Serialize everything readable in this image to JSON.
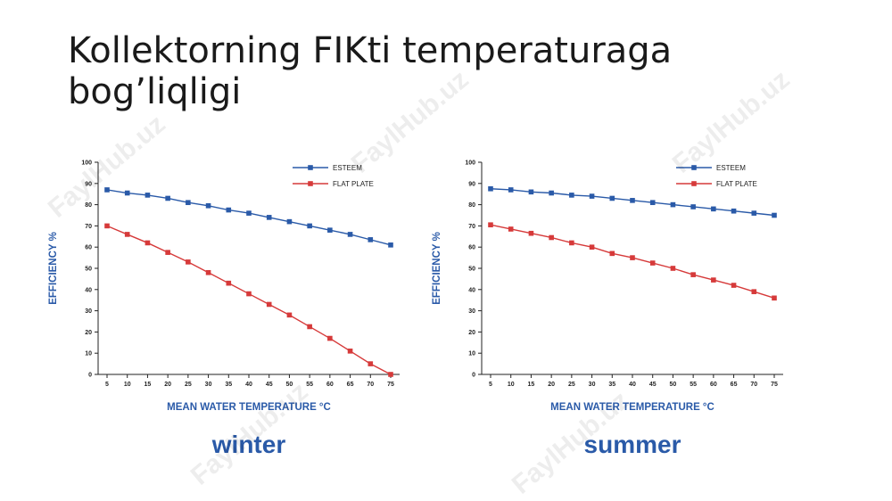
{
  "slide": {
    "title": "Kollektorning FIKti temperaturaga bog’liqligi",
    "watermark": "FaylHub.uz"
  },
  "colors": {
    "esteem": "#2a5aa8",
    "flat_plate": "#d63a3a",
    "label": "#2a5aa8"
  },
  "chart_data": [
    {
      "type": "line",
      "caption": "winter",
      "xlabel": "MEAN WATER TEMPERATURE °C",
      "ylabel": "EFFICIENCY %",
      "x": [
        5,
        10,
        15,
        20,
        25,
        30,
        35,
        40,
        45,
        50,
        55,
        60,
        65,
        70,
        75
      ],
      "ylim": [
        0,
        100
      ],
      "yticks": [
        0,
        10,
        20,
        30,
        40,
        50,
        60,
        70,
        80,
        90,
        100
      ],
      "grid": false,
      "legend": "top-right",
      "series": [
        {
          "name": "ESTEEM",
          "values": [
            87,
            85.5,
            84.5,
            83,
            81,
            79.5,
            77.5,
            76,
            74,
            72,
            70,
            68,
            66,
            63.5,
            61
          ]
        },
        {
          "name": "FLAT PLATE",
          "values": [
            70,
            66,
            62,
            57.5,
            53,
            48,
            43,
            38,
            33,
            28,
            22.5,
            17,
            11,
            5,
            0
          ]
        }
      ]
    },
    {
      "type": "line",
      "caption": "summer",
      "xlabel": "MEAN WATER TEMPERATURE °C",
      "ylabel": "EFFICIENCY %",
      "x": [
        5,
        10,
        15,
        20,
        25,
        30,
        35,
        40,
        45,
        50,
        55,
        60,
        65,
        70,
        75
      ],
      "ylim": [
        0,
        100
      ],
      "yticks": [
        0,
        10,
        20,
        30,
        40,
        50,
        60,
        70,
        80,
        90,
        100
      ],
      "grid": false,
      "legend": "top-right",
      "series": [
        {
          "name": "ESTEEM",
          "values": [
            87.5,
            87,
            86,
            85.5,
            84.5,
            84,
            83,
            82,
            81,
            80,
            79,
            78,
            77,
            76,
            75
          ]
        },
        {
          "name": "FLAT PLATE",
          "values": [
            70.5,
            68.5,
            66.5,
            64.5,
            62,
            60,
            57,
            55,
            52.5,
            50,
            47,
            44.5,
            42,
            39,
            36
          ]
        }
      ]
    }
  ]
}
